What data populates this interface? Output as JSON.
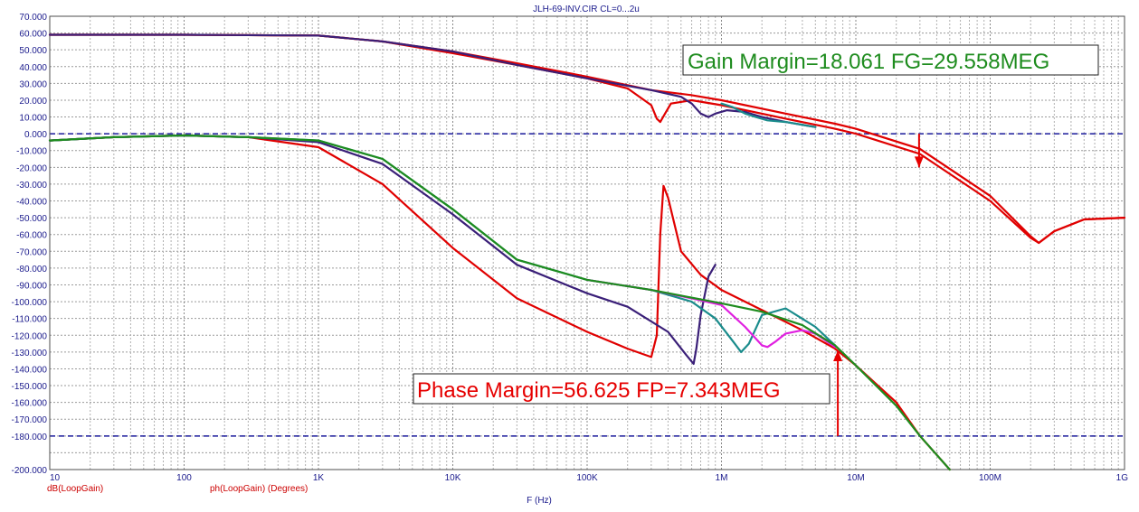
{
  "chart_data": {
    "type": "line",
    "title": "JLH-69-INV.CIR CL=0...2u",
    "xlabel": "F (Hz)",
    "x_scale": "log",
    "xlim": [
      10,
      1000000000
    ],
    "ylim": [
      -200,
      70
    ],
    "grid": true,
    "x_ticks": [
      {
        "value": 10,
        "label": "10"
      },
      {
        "value": 100,
        "label": "100"
      },
      {
        "value": 1000,
        "label": "1K"
      },
      {
        "value": 10000,
        "label": "10K"
      },
      {
        "value": 100000,
        "label": "100K"
      },
      {
        "value": 1000000,
        "label": "1M"
      },
      {
        "value": 10000000,
        "label": "10M"
      },
      {
        "value": 100000000,
        "label": "100M"
      },
      {
        "value": 1000000000,
        "label": "1G"
      }
    ],
    "y_ticks": [
      {
        "value": 70,
        "label": "70.000"
      },
      {
        "value": 60,
        "label": "60.000"
      },
      {
        "value": 50,
        "label": "50.000"
      },
      {
        "value": 40,
        "label": "40.000"
      },
      {
        "value": 30,
        "label": "30.000"
      },
      {
        "value": 20,
        "label": "20.000"
      },
      {
        "value": 10,
        "label": "10.000"
      },
      {
        "value": 0,
        "label": "0.000"
      },
      {
        "value": -10,
        "label": "-10.000"
      },
      {
        "value": -20,
        "label": "-20.000"
      },
      {
        "value": -30,
        "label": "-30.000"
      },
      {
        "value": -40,
        "label": "-40.000"
      },
      {
        "value": -50,
        "label": "-50.000"
      },
      {
        "value": -60,
        "label": "-60.000"
      },
      {
        "value": -70,
        "label": "-70.000"
      },
      {
        "value": -80,
        "label": "-80.000"
      },
      {
        "value": -90,
        "label": "-90.000"
      },
      {
        "value": -100,
        "label": "-100.000"
      },
      {
        "value": -110,
        "label": "-110.000"
      },
      {
        "value": -120,
        "label": "-120.000"
      },
      {
        "value": -130,
        "label": "-130.000"
      },
      {
        "value": -140,
        "label": "-140.000"
      },
      {
        "value": -150,
        "label": "-150.000"
      },
      {
        "value": -160,
        "label": "-160.000"
      },
      {
        "value": -170,
        "label": "-170.000"
      },
      {
        "value": -180,
        "label": "-180.000"
      },
      {
        "value": -200,
        "label": "-200.000"
      }
    ],
    "reference_lines": [
      0,
      -180
    ],
    "legend": [
      {
        "label": "dB(LoopGain)",
        "color": "#cc0000"
      },
      {
        "label": "ph(LoopGain) (Degrees)",
        "color": "#cc0000"
      }
    ],
    "annotations": [
      {
        "text": "Gain Margin=18.061 FG=29.558MEG",
        "color": "#1e8c1e",
        "arrow_x": 29558000,
        "arrow_from": 0,
        "arrow_to": -20
      },
      {
        "text": "Phase Margin=56.625 FP=7.343MEG",
        "color": "#e60000",
        "arrow_x": 7343000,
        "arrow_from": -180,
        "arrow_to": -129
      }
    ],
    "series": [
      {
        "group": "gain",
        "color": "#e00000",
        "x": [
          10,
          100,
          1000,
          3000,
          10000,
          30000,
          100000,
          200000,
          300000,
          330000,
          350000,
          380000,
          420000,
          600000,
          1000000,
          3000000,
          7000000,
          10000000,
          30000000,
          100000000,
          200000000,
          230000000,
          300000000,
          500000000,
          1000000000
        ],
        "y": [
          59,
          59,
          58.5,
          55,
          48,
          41,
          33,
          27,
          17,
          9,
          7,
          12,
          18,
          20,
          17,
          9,
          3,
          0,
          -12,
          -40,
          -62,
          -65,
          -58,
          -51,
          -50
        ]
      },
      {
        "group": "gain",
        "color": "#e00000",
        "x": [
          10,
          100,
          1000,
          3000,
          10000,
          30000,
          100000,
          300000,
          600000,
          1000000,
          3000000,
          7000000,
          10000000,
          30000000,
          100000000,
          200000000,
          230000000,
          300000000,
          500000000,
          1000000000
        ],
        "y": [
          59,
          59,
          58.5,
          55,
          49,
          42,
          34,
          26,
          23,
          20,
          12,
          6,
          3,
          -9,
          -37,
          -61,
          -65,
          -58,
          -51,
          -50
        ]
      },
      {
        "group": "gain",
        "color": "#3a1f78",
        "x": [
          10,
          100,
          1000,
          3000,
          10000,
          30000,
          100000,
          300000,
          500000,
          600000,
          700000,
          800000,
          900000,
          1100000,
          1500000,
          2000000,
          3000000,
          5000000
        ],
        "y": [
          59,
          59,
          58.5,
          55,
          49,
          41,
          33,
          26,
          22,
          18,
          12,
          10,
          12,
          14,
          13,
          10,
          7,
          4
        ]
      },
      {
        "group": "gain",
        "color": "#1a8c8c",
        "x": [
          1000000,
          1200000,
          1500000,
          1800000,
          2200000,
          3000000,
          5000000
        ],
        "y": [
          18,
          16,
          12,
          10,
          8,
          7,
          4
        ]
      },
      {
        "group": "phase",
        "color": "#e00000",
        "x": [
          10,
          30,
          100,
          300,
          1000,
          3000,
          10000,
          30000,
          100000,
          200000,
          300000,
          330000,
          350000,
          370000,
          400000,
          500000,
          700000,
          1000000,
          2000000,
          4000000,
          7000000,
          10000000,
          20000000,
          30000000,
          50000000
        ],
        "y": [
          -4,
          -2,
          -1,
          -2,
          -8,
          -30,
          -68,
          -98,
          -118,
          -128,
          -133,
          -120,
          -60,
          -31,
          -38,
          -70,
          -84,
          -93,
          -105,
          -117,
          -128,
          -138,
          -160,
          -180,
          -200
        ]
      },
      {
        "group": "phase",
        "color": "#3a1f78",
        "x": [
          10,
          30,
          100,
          300,
          1000,
          3000,
          10000,
          30000,
          100000,
          200000,
          400000,
          550000,
          620000,
          650000,
          700000,
          800000,
          900000
        ],
        "y": [
          -4,
          -2,
          -1,
          -2,
          -5,
          -18,
          -48,
          -78,
          -95,
          -103,
          -118,
          -132,
          -137,
          -128,
          -108,
          -85,
          -78
        ]
      },
      {
        "group": "phase",
        "color": "#1a8c8c",
        "x": [
          10,
          30,
          100,
          300,
          1000,
          3000,
          10000,
          30000,
          100000,
          300000,
          600000,
          900000,
          1200000,
          1400000,
          1600000,
          2000000,
          3000000,
          5000000,
          7000000
        ],
        "y": [
          -4,
          -2,
          -1,
          -2,
          -4,
          -15,
          -45,
          -75,
          -87,
          -93,
          -100,
          -110,
          -123,
          -130,
          -125,
          -108,
          -104,
          -115,
          -126
        ]
      },
      {
        "group": "phase",
        "color": "#e020e0",
        "x": [
          100000,
          300000,
          600000,
          1000000,
          1500000,
          2000000,
          2200000,
          2500000,
          3000000,
          4000000,
          5000000,
          7000000
        ],
        "y": [
          -87,
          -93,
          -98,
          -102,
          -115,
          -126,
          -127,
          -124,
          -119,
          -117,
          -119,
          -127
        ]
      },
      {
        "group": "phase",
        "color": "#1e8c1e",
        "x": [
          10,
          30,
          100,
          300,
          1000,
          3000,
          10000,
          30000,
          100000,
          300000,
          1000000,
          2000000,
          4000000,
          7000000,
          10000000,
          20000000,
          30000000,
          50000000
        ],
        "y": [
          -4,
          -2,
          -1,
          -2,
          -4,
          -15,
          -45,
          -75,
          -87,
          -93,
          -101,
          -106,
          -114,
          -126,
          -138,
          -162,
          -180,
          -200
        ]
      }
    ]
  }
}
